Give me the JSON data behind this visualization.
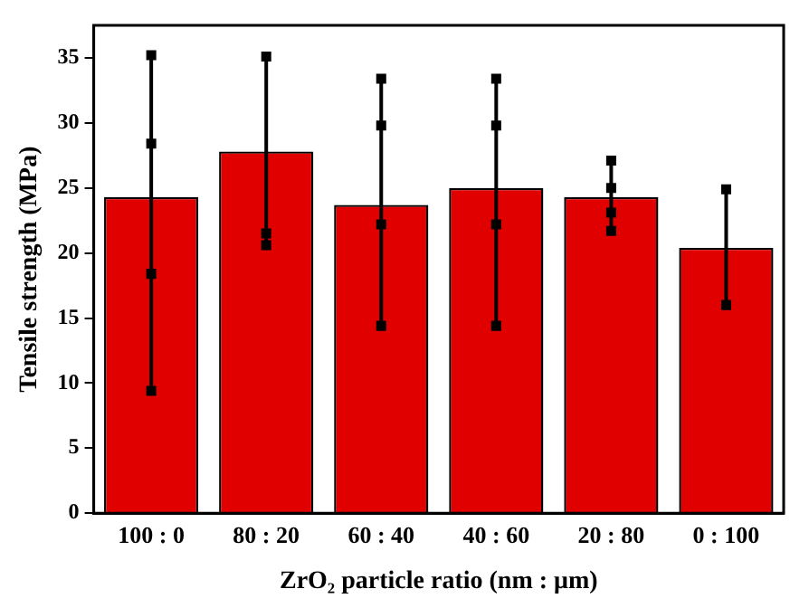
{
  "chart_data": {
    "type": "bar",
    "xlabel": "ZrO₂ particle ratio (nm : μm)",
    "ylabel": "Tensile strength (MPa)",
    "categories": [
      "100 : 0",
      "80 : 20",
      "60 : 40",
      "40 : 60",
      "20 : 80",
      "0 : 100"
    ],
    "ylim": [
      0,
      37.5
    ],
    "yticks": [
      0,
      5,
      10,
      15,
      20,
      25,
      30,
      35
    ],
    "grid": false,
    "legend": false,
    "series": [
      {
        "color": "#e00000",
        "values": [
          24.3,
          27.8,
          23.7,
          25.0,
          24.3,
          20.4
        ],
        "errors": [
          [
            9.4,
            35.2
          ],
          [
            20.6,
            35.1
          ],
          [
            14.4,
            33.4
          ],
          [
            14.4,
            33.4
          ],
          [
            21.7,
            27.1
          ],
          [
            16.0,
            24.9
          ]
        ]
      },
      {
        "type": "scatter",
        "color": "#000000",
        "marker": "square",
        "x": [
          "100 : 0",
          "100 : 0",
          "100 : 0",
          "100 : 0",
          "80 : 20",
          "80 : 20",
          "80 : 20",
          "60 : 40",
          "60 : 40",
          "60 : 40",
          "60 : 40",
          "40 : 60",
          "40 : 60",
          "40 : 60",
          "40 : 60",
          "20 : 80",
          "20 : 80",
          "20 : 80",
          "20 : 80",
          "0 : 100",
          "0 : 100"
        ],
        "values": [
          35.2,
          28.4,
          18.4,
          9.4,
          35.1,
          21.5,
          20.6,
          33.4,
          29.8,
          22.2,
          14.4,
          33.4,
          29.8,
          22.2,
          14.4,
          27.1,
          25.0,
          23.1,
          21.7,
          24.9,
          16.0
        ]
      }
    ]
  }
}
